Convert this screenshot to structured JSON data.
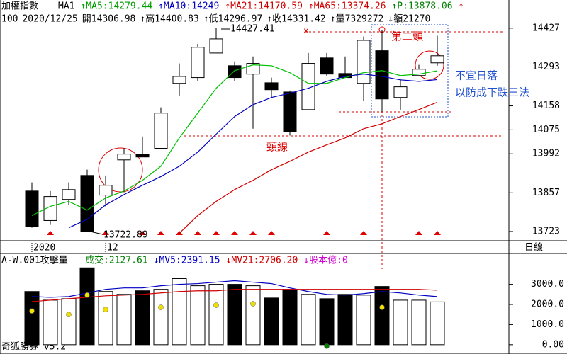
{
  "chart_data": {
    "type": "candlestick",
    "title": "加權指數",
    "header": [
      "MA1",
      "↑MA5:14279.44",
      "↑MA10:14249",
      "↑MA21:14170.59",
      "↑MA65:13374.26",
      "↑P:13878.06",
      "↑"
    ],
    "info": [
      "100",
      "2020/12/25",
      "開14306.98",
      "↑高14400.83",
      "↑低14296.97",
      "↑收14331.42",
      "↑量7329272",
      "↓額21270"
    ],
    "categories": [
      "2020",
      null,
      null,
      null,
      "12",
      null,
      null,
      null,
      null,
      null,
      null,
      null,
      null,
      null,
      null,
      null,
      null,
      null,
      null,
      null,
      null,
      null,
      null
    ],
    "open": [
      13863,
      13761,
      13834,
      13917,
      13849,
      13971,
      13991,
      14011,
      14236,
      14256,
      14341,
      14297,
      14268,
      14238,
      14206,
      14145,
      14324,
      14270,
      14236,
      14349,
      14187,
      14263,
      14306.98
    ],
    "high": [
      13893,
      13863,
      13893,
      13937,
      13917,
      14011,
      14052,
      14153,
      14305,
      14373,
      14427.41,
      14312,
      14329,
      14256,
      14211,
      14341,
      14341,
      14329,
      14398,
      14422,
      14251,
      14300,
      14400.83
    ],
    "low": [
      13736,
      13746,
      13815,
      13722.89,
      13810,
      13859,
      13981,
      14011,
      14194,
      14243,
      14341,
      14243,
      14079,
      14187,
      14055,
      14145,
      14260,
      14256,
      14175,
      14138,
      14145,
      14260,
      14296.97
    ],
    "close": [
      13741,
      13844,
      13868,
      13724,
      13883,
      13991,
      13981,
      14133,
      14260,
      14361,
      14390,
      14256,
      14305,
      14214,
      14069,
      14305,
      14268,
      14256,
      14385,
      14182,
      14224,
      14285,
      14331.42
    ],
    "up_color": "#ffffff",
    "down_color": "#000000",
    "ylim": [
      13691,
      14456
    ],
    "yticks": [
      13723,
      13857,
      13992,
      14075,
      14158,
      14293,
      14427
    ],
    "series": [
      {
        "name": "MA5",
        "color": "#00c000",
        "values": [
          13778,
          13810,
          13827,
          13797,
          13839,
          13863,
          13900,
          13949,
          14047,
          14133,
          14219,
          14280,
          14300,
          14297,
          14273,
          14236,
          14236,
          14256,
          14273,
          14280,
          14263,
          14268,
          14279.44
        ]
      },
      {
        "name": "MA10",
        "color": "#0000c0",
        "values": [
          null,
          null,
          13736,
          13765,
          13815,
          13851,
          13883,
          13913,
          13949,
          13998,
          14060,
          14121,
          14162,
          14187,
          14202,
          14219,
          14243,
          14260,
          14268,
          14260,
          14248,
          14243,
          14249
        ]
      },
      {
        "name": "MA21",
        "color": "#d00000",
        "values": [
          null,
          null,
          null,
          null,
          null,
          null,
          null,
          null,
          13717,
          13778,
          13827,
          13868,
          13900,
          13937,
          13966,
          13998,
          14023,
          14047,
          14079,
          14096,
          14121,
          14145,
          14170.59
        ]
      }
    ],
    "annotations": {
      "high_label": "14427.41",
      "low_label": "13722.89",
      "second_top": "第二頭",
      "neckline": "頸線",
      "note1": "不宜日落",
      "note2": "以防成下跌三法",
      "cross": "×"
    },
    "period": "日線",
    "volume": {
      "title": "A-W.001攻擊量",
      "header": [
        "成交:2127.61",
        "↓MV5:2391.15",
        "↓MV21:2706.20",
        "↓股本億:0"
      ],
      "values": [
        2643,
        2214,
        2286,
        3821,
        2643,
        2500,
        2679,
        2750,
        3286,
        2929,
        3000,
        3000,
        2929,
        2321,
        2750,
        2500,
        2286,
        2500,
        2464,
        2893,
        2214,
        2214,
        2127.61
      ],
      "ylim": [
        -393,
        4464
      ],
      "yticks": [
        {
          "value": 0,
          "label": "0.00"
        },
        {
          "value": 1000,
          "label": "1000.0"
        },
        {
          "value": 2000,
          "label": "2000.0"
        },
        {
          "value": 3000,
          "label": "3000.0"
        }
      ],
      "series": [
        {
          "name": "MV5",
          "color": "#0000c0",
          "values": [
            2393,
            2357,
            2393,
            2571,
            2750,
            2821,
            2821,
            2929,
            3000,
            3036,
            3107,
            3179,
            3107,
            3036,
            2821,
            2643,
            2500,
            2464,
            2536,
            2643,
            2571,
            2464,
            2391.15
          ]
        },
        {
          "name": "MV21",
          "color": "#d00000",
          "values": [
            2143,
            2214,
            2286,
            2357,
            2429,
            2464,
            2500,
            2571,
            2643,
            2679,
            2679,
            2750,
            2750,
            2750,
            2750,
            2750,
            2750,
            2750,
            2750,
            2750,
            2750,
            2750,
            2706.2
          ]
        }
      ],
      "dots": {
        "color": "#f0e000",
        "values": [
          1679,
          null,
          1500,
          2464,
          1750,
          null,
          null,
          1857,
          null,
          null,
          1964,
          null,
          2036,
          null,
          null,
          null,
          null,
          null,
          null,
          1857,
          null,
          null,
          null
        ]
      },
      "green_dots": {
        "color": "#008000",
        "values": [
          null,
          null,
          null,
          null,
          null,
          null,
          null,
          null,
          null,
          null,
          null,
          null,
          null,
          null,
          null,
          null,
          -71,
          null,
          null,
          null,
          null,
          null,
          null
        ]
      }
    },
    "footer": "奇狐勝券 v5.2"
  }
}
